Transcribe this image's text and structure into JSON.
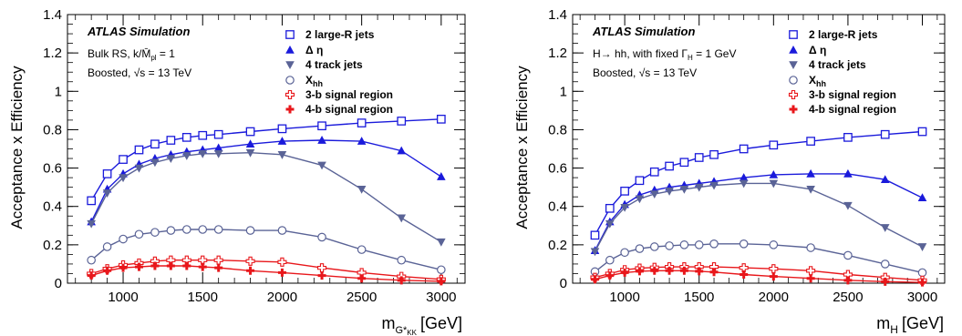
{
  "chart_data": [
    {
      "type": "line",
      "ylabel": "Acceptance x Efficiency",
      "xlabel": "[GeV]",
      "xlabel_main": "m",
      "xlabel_sub": "G*",
      "xlabel_subsub": "KK",
      "xlim": [
        650,
        3150
      ],
      "ylim": [
        0,
        1.4
      ],
      "xticks": [
        1000,
        1500,
        2000,
        2500,
        3000
      ],
      "xtick_labels": [
        "1000",
        "1500",
        "2000",
        "2500",
        "3000"
      ],
      "yticks": [
        0,
        0.2,
        0.4,
        0.6,
        0.8,
        1,
        1.2,
        1.4
      ],
      "ytick_labels": [
        "0",
        "0.2",
        "0.4",
        "0.6",
        "0.8",
        "1",
        "1.2",
        "1.4"
      ],
      "annotations": [
        "ATLAS Simulation",
        "Bulk RS, k/M̄",
        "pl",
        " = 1",
        "Boosted, √s = 13 TeV"
      ],
      "legend": [
        "2 large-R jets",
        "Δ η",
        "4 track jets",
        "X",
        "hh",
        "3-b signal region",
        "4-b signal region"
      ],
      "series": [
        {
          "name": "2 large-R jets",
          "color": "#1a1adb",
          "marker": "open-square",
          "x": [
            800,
            900,
            1000,
            1100,
            1200,
            1300,
            1400,
            1500,
            1600,
            1800,
            2000,
            2250,
            2500,
            2750,
            3000
          ],
          "values": [
            0.43,
            0.57,
            0.645,
            0.695,
            0.725,
            0.745,
            0.76,
            0.77,
            0.775,
            0.79,
            0.805,
            0.82,
            0.835,
            0.845,
            0.855
          ]
        },
        {
          "name": "Δ η",
          "color": "#1a1adb",
          "marker": "filled-triangle-up",
          "x": [
            800,
            900,
            1000,
            1100,
            1200,
            1300,
            1400,
            1500,
            1600,
            1800,
            2000,
            2250,
            2500,
            2750,
            3000
          ],
          "values": [
            0.32,
            0.49,
            0.57,
            0.62,
            0.65,
            0.67,
            0.685,
            0.695,
            0.705,
            0.725,
            0.74,
            0.745,
            0.74,
            0.69,
            0.555
          ]
        },
        {
          "name": "4 track jets",
          "color": "#5a6396",
          "marker": "filled-triangle-down",
          "x": [
            800,
            900,
            1000,
            1100,
            1200,
            1300,
            1400,
            1500,
            1600,
            1800,
            2000,
            2250,
            2500,
            2750,
            3000
          ],
          "values": [
            0.31,
            0.47,
            0.55,
            0.6,
            0.63,
            0.65,
            0.665,
            0.675,
            0.675,
            0.68,
            0.67,
            0.615,
            0.49,
            0.34,
            0.215
          ]
        },
        {
          "name": "Xhh",
          "color": "#5a6396",
          "marker": "open-circle",
          "x": [
            800,
            900,
            1000,
            1100,
            1200,
            1300,
            1400,
            1500,
            1600,
            1800,
            2000,
            2250,
            2500,
            2750,
            3000
          ],
          "values": [
            0.12,
            0.19,
            0.23,
            0.255,
            0.265,
            0.275,
            0.28,
            0.28,
            0.28,
            0.275,
            0.275,
            0.24,
            0.175,
            0.12,
            0.07
          ]
        },
        {
          "name": "3-b signal region",
          "color": "#e8171b",
          "marker": "open-cross",
          "x": [
            800,
            900,
            1000,
            1100,
            1200,
            1300,
            1400,
            1500,
            1600,
            1800,
            2000,
            2250,
            2500,
            2750,
            3000
          ],
          "values": [
            0.05,
            0.075,
            0.095,
            0.105,
            0.115,
            0.12,
            0.12,
            0.12,
            0.12,
            0.115,
            0.11,
            0.08,
            0.055,
            0.035,
            0.02
          ]
        },
        {
          "name": "4-b signal region",
          "color": "#e8171b",
          "marker": "filled-cross",
          "x": [
            800,
            900,
            1000,
            1100,
            1200,
            1300,
            1400,
            1500,
            1600,
            1800,
            2000,
            2250,
            2500,
            2750,
            3000
          ],
          "values": [
            0.04,
            0.065,
            0.08,
            0.085,
            0.09,
            0.09,
            0.09,
            0.085,
            0.08,
            0.065,
            0.055,
            0.04,
            0.025,
            0.015,
            0.01
          ]
        }
      ]
    },
    {
      "type": "line",
      "ylabel": "Acceptance x Efficiency",
      "xlabel": "[GeV]",
      "xlabel_main": "m",
      "xlabel_sub": "H",
      "xlabel_subsub": "",
      "xlim": [
        650,
        3150
      ],
      "ylim": [
        0,
        1.4
      ],
      "xticks": [
        1000,
        1500,
        2000,
        2500,
        3000
      ],
      "xtick_labels": [
        "1000",
        "1500",
        "2000",
        "2500",
        "3000"
      ],
      "yticks": [
        0,
        0.2,
        0.4,
        0.6,
        0.8,
        1,
        1.2,
        1.4
      ],
      "ytick_labels": [
        "0",
        "0.2",
        "0.4",
        "0.6",
        "0.8",
        "1",
        "1.2",
        "1.4"
      ],
      "annotations": [
        "ATLAS Simulation",
        "H→ hh, with fixed Γ",
        "H",
        " = 1 GeV",
        "Boosted, √s = 13 TeV"
      ],
      "legend": [
        "2 large-R jets",
        "Δ η",
        "4 track jets",
        "X",
        "hh",
        "3-b signal region",
        "4-b signal region"
      ],
      "series": [
        {
          "name": "2 large-R jets",
          "color": "#1a1adb",
          "marker": "open-square",
          "x": [
            800,
            900,
            1000,
            1100,
            1200,
            1300,
            1400,
            1500,
            1600,
            1800,
            2000,
            2250,
            2500,
            2750,
            3000
          ],
          "values": [
            0.25,
            0.39,
            0.48,
            0.535,
            0.58,
            0.61,
            0.63,
            0.655,
            0.67,
            0.7,
            0.72,
            0.74,
            0.76,
            0.775,
            0.79
          ]
        },
        {
          "name": "Δ η",
          "color": "#1a1adb",
          "marker": "filled-triangle-up",
          "x": [
            800,
            900,
            1000,
            1100,
            1200,
            1300,
            1400,
            1500,
            1600,
            1800,
            2000,
            2250,
            2500,
            2750,
            3000
          ],
          "values": [
            0.17,
            0.32,
            0.41,
            0.46,
            0.485,
            0.5,
            0.51,
            0.52,
            0.53,
            0.55,
            0.565,
            0.57,
            0.57,
            0.54,
            0.445
          ]
        },
        {
          "name": "4 track jets",
          "color": "#5a6396",
          "marker": "filled-triangle-down",
          "x": [
            800,
            900,
            1000,
            1100,
            1200,
            1300,
            1400,
            1500,
            1600,
            1800,
            2000,
            2250,
            2500,
            2750,
            3000
          ],
          "values": [
            0.165,
            0.31,
            0.395,
            0.44,
            0.465,
            0.48,
            0.49,
            0.5,
            0.51,
            0.52,
            0.52,
            0.49,
            0.405,
            0.29,
            0.19
          ]
        },
        {
          "name": "Xhh",
          "color": "#5a6396",
          "marker": "open-circle",
          "x": [
            800,
            900,
            1000,
            1100,
            1200,
            1300,
            1400,
            1500,
            1600,
            1800,
            2000,
            2250,
            2500,
            2750,
            3000
          ],
          "values": [
            0.06,
            0.12,
            0.16,
            0.18,
            0.19,
            0.195,
            0.2,
            0.2,
            0.205,
            0.205,
            0.2,
            0.185,
            0.145,
            0.1,
            0.055
          ]
        },
        {
          "name": "3-b signal region",
          "color": "#e8171b",
          "marker": "open-cross",
          "x": [
            800,
            900,
            1000,
            1100,
            1200,
            1300,
            1400,
            1500,
            1600,
            1800,
            2000,
            2250,
            2500,
            2750,
            3000
          ],
          "values": [
            0.03,
            0.05,
            0.07,
            0.078,
            0.082,
            0.085,
            0.085,
            0.085,
            0.085,
            0.08,
            0.075,
            0.065,
            0.045,
            0.03,
            0.015
          ]
        },
        {
          "name": "4-b signal region",
          "color": "#e8171b",
          "marker": "filled-cross",
          "x": [
            800,
            900,
            1000,
            1100,
            1200,
            1300,
            1400,
            1500,
            1600,
            1800,
            2000,
            2250,
            2500,
            2750,
            3000
          ],
          "values": [
            0.02,
            0.04,
            0.055,
            0.062,
            0.065,
            0.065,
            0.065,
            0.062,
            0.058,
            0.045,
            0.035,
            0.025,
            0.015,
            0.008,
            0.004
          ]
        }
      ]
    }
  ]
}
